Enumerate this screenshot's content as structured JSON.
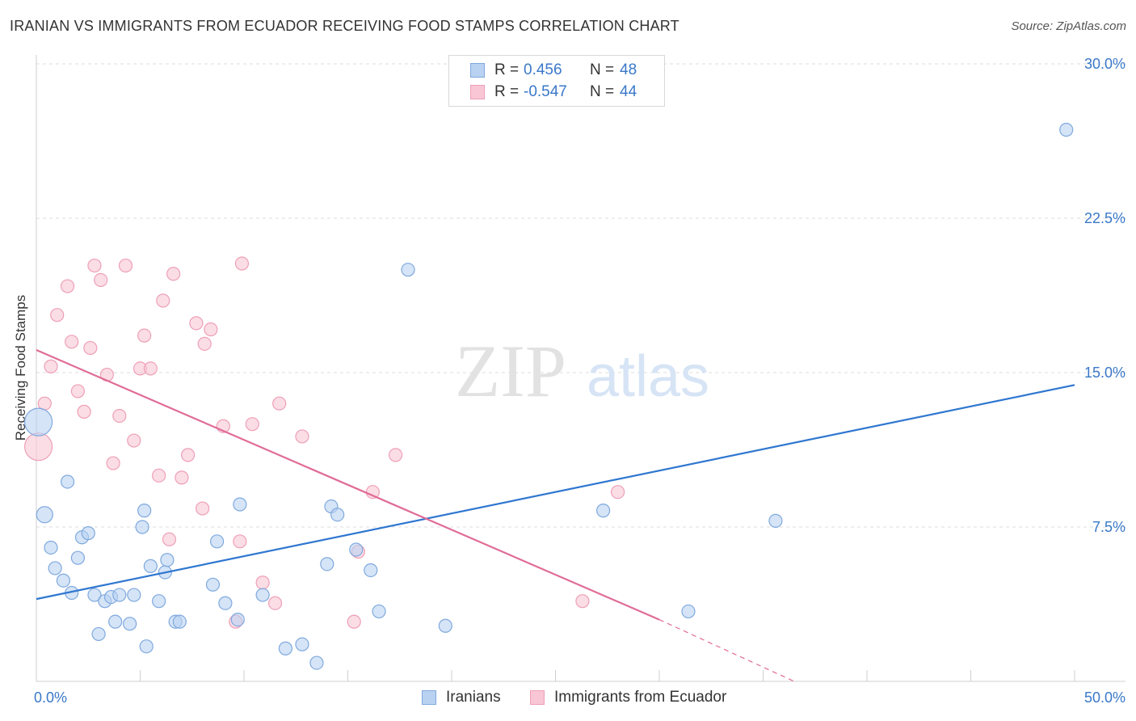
{
  "title": "IRANIAN VS IMMIGRANTS FROM ECUADOR RECEIVING FOOD STAMPS CORRELATION CHART",
  "source": "Source: ZipAtlas.com",
  "watermark": {
    "zip": "ZIP",
    "atlas": "atlas"
  },
  "colors": {
    "blue_fill": "#b9d2f1",
    "blue_stroke": "#7fa9de",
    "blue_line": "#2f77d0",
    "pink_fill": "#f8c6d4",
    "pink_stroke": "#ee9fb7",
    "pink_line": "#e06c97",
    "tick_label": "#3a78c8",
    "grid": "#dcdcdc"
  },
  "legend": {
    "rows": [
      {
        "r_label": "R =",
        "r_value": "0.456",
        "n_label": "N =",
        "n_value": "48"
      },
      {
        "r_label": "R =",
        "r_value": "-0.547",
        "n_label": "N =",
        "n_value": "44"
      }
    ]
  },
  "bottom_legend": {
    "series1": "Iranians",
    "series2": "Immigrants from Ecuador"
  },
  "chart_data": {
    "type": "scatter",
    "title": "IRANIAN VS IMMIGRANTS FROM ECUADOR RECEIVING FOOD STAMPS CORRELATION CHART",
    "xlabel": "",
    "ylabel": "Receiving Food Stamps",
    "xlim": [
      0,
      50
    ],
    "ylim": [
      0,
      30
    ],
    "x_tick_labels": [
      "0.0%",
      "50.0%"
    ],
    "y_ticks": [
      7.5,
      15.0,
      22.5,
      30.0
    ],
    "y_tick_labels": [
      "7.5%",
      "15.0%",
      "22.5%",
      "30.0%"
    ],
    "grid": true,
    "legend_position": "top-center",
    "series": [
      {
        "name": "Iranians",
        "r": 0.456,
        "n": 48,
        "trend": {
          "x": [
            0,
            50
          ],
          "y": [
            4.0,
            14.4
          ]
        },
        "points": [
          [
            0.1,
            12.6,
            3
          ],
          [
            0.4,
            8.1,
            2
          ],
          [
            0.7,
            6.5,
            1
          ],
          [
            0.9,
            5.5,
            1
          ],
          [
            1.3,
            4.9,
            1
          ],
          [
            1.5,
            9.7,
            1
          ],
          [
            1.7,
            4.3,
            1
          ],
          [
            2.0,
            6.0,
            1
          ],
          [
            2.2,
            7.0,
            1
          ],
          [
            2.5,
            7.2,
            1
          ],
          [
            2.8,
            4.2,
            1
          ],
          [
            3.0,
            2.3,
            1
          ],
          [
            3.3,
            3.9,
            1
          ],
          [
            3.6,
            4.1,
            1
          ],
          [
            3.8,
            2.9,
            1
          ],
          [
            4.0,
            4.2,
            1
          ],
          [
            4.5,
            2.8,
            1
          ],
          [
            4.7,
            4.2,
            1
          ],
          [
            5.1,
            7.5,
            1
          ],
          [
            5.2,
            8.3,
            1
          ],
          [
            5.3,
            1.7,
            1
          ],
          [
            5.5,
            5.6,
            1
          ],
          [
            5.9,
            3.9,
            1
          ],
          [
            6.2,
            5.3,
            1
          ],
          [
            6.3,
            5.9,
            1
          ],
          [
            6.7,
            2.9,
            1
          ],
          [
            6.9,
            2.9,
            1
          ],
          [
            8.5,
            4.7,
            1
          ],
          [
            8.7,
            6.8,
            1
          ],
          [
            9.1,
            3.8,
            1
          ],
          [
            9.7,
            3.0,
            1
          ],
          [
            9.8,
            8.6,
            1
          ],
          [
            10.9,
            4.2,
            1
          ],
          [
            12.0,
            1.6,
            1
          ],
          [
            12.8,
            1.8,
            1
          ],
          [
            13.5,
            0.9,
            1
          ],
          [
            14.0,
            5.7,
            1
          ],
          [
            14.2,
            8.5,
            1
          ],
          [
            14.5,
            8.1,
            1
          ],
          [
            15.4,
            6.4,
            1
          ],
          [
            16.1,
            5.4,
            1
          ],
          [
            16.5,
            3.4,
            1
          ],
          [
            17.9,
            20.0,
            1
          ],
          [
            19.7,
            2.7,
            1
          ],
          [
            27.3,
            8.3,
            1
          ],
          [
            31.4,
            3.4,
            1
          ],
          [
            35.6,
            7.8,
            1
          ],
          [
            49.6,
            26.8,
            1
          ]
        ]
      },
      {
        "name": "Immigrants from Ecuador",
        "r": -0.547,
        "n": 44,
        "trend": {
          "x": [
            0,
            30
          ],
          "y": [
            16.1,
            3.0
          ]
        },
        "trend_dashed": {
          "x": [
            30,
            36.5
          ],
          "y": [
            3.0,
            0.0
          ]
        },
        "points": [
          [
            0.1,
            11.4,
            3
          ],
          [
            0.4,
            13.5,
            1
          ],
          [
            0.7,
            15.3,
            1
          ],
          [
            1.0,
            17.8,
            1
          ],
          [
            1.5,
            19.2,
            1
          ],
          [
            1.7,
            16.5,
            1
          ],
          [
            2.0,
            14.1,
            1
          ],
          [
            2.3,
            13.1,
            1
          ],
          [
            2.6,
            16.2,
            1
          ],
          [
            2.8,
            20.2,
            1
          ],
          [
            3.1,
            19.5,
            1
          ],
          [
            3.4,
            14.9,
            1
          ],
          [
            3.7,
            10.6,
            1
          ],
          [
            4.0,
            12.9,
            1
          ],
          [
            4.3,
            20.2,
            1
          ],
          [
            4.7,
            11.7,
            1
          ],
          [
            5.0,
            15.2,
            1
          ],
          [
            5.2,
            16.8,
            1
          ],
          [
            5.5,
            15.2,
            1
          ],
          [
            5.9,
            10.0,
            1
          ],
          [
            6.1,
            18.5,
            1
          ],
          [
            6.4,
            6.9,
            1
          ],
          [
            6.6,
            19.8,
            1
          ],
          [
            7.0,
            9.9,
            1
          ],
          [
            7.3,
            11.0,
            1
          ],
          [
            7.7,
            17.4,
            1
          ],
          [
            8.0,
            8.4,
            1
          ],
          [
            8.1,
            16.4,
            1
          ],
          [
            8.4,
            17.1,
            1
          ],
          [
            9.0,
            12.4,
            1
          ],
          [
            9.6,
            2.9,
            1
          ],
          [
            9.8,
            6.8,
            1
          ],
          [
            9.9,
            20.3,
            1
          ],
          [
            10.4,
            12.5,
            1
          ],
          [
            10.9,
            4.8,
            1
          ],
          [
            11.5,
            3.8,
            1
          ],
          [
            11.7,
            13.5,
            1
          ],
          [
            12.8,
            11.9,
            1
          ],
          [
            15.3,
            2.9,
            1
          ],
          [
            15.5,
            6.3,
            1
          ],
          [
            16.2,
            9.2,
            1
          ],
          [
            17.3,
            11.0,
            1
          ],
          [
            26.3,
            3.9,
            1
          ],
          [
            28.0,
            9.2,
            1
          ]
        ]
      }
    ]
  }
}
